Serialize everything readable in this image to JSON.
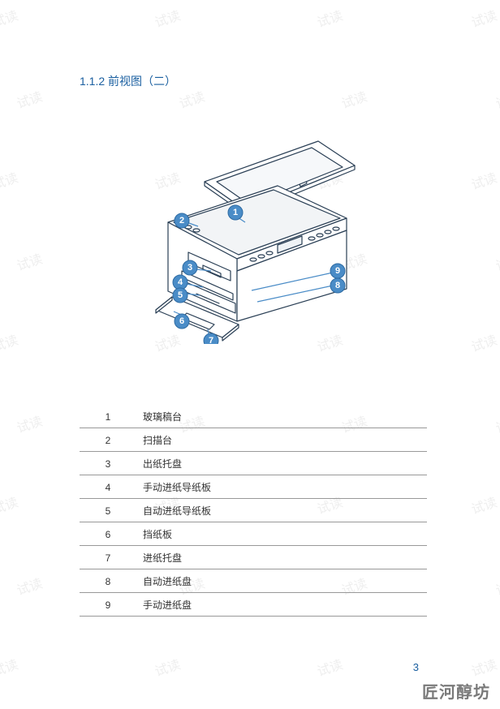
{
  "watermark_text": "试读",
  "section_title": "1.1.2  前视图（二）",
  "callouts": {
    "c1": "1",
    "c2": "2",
    "c3": "3",
    "c4": "4",
    "c5": "5",
    "c6": "6",
    "c7": "7",
    "c8": "8",
    "c9": "9"
  },
  "parts": [
    {
      "num": "1",
      "label": "玻璃稿台"
    },
    {
      "num": "2",
      "label": "扫描台"
    },
    {
      "num": "3",
      "label": "出纸托盘"
    },
    {
      "num": "4",
      "label": "手动进纸导纸板"
    },
    {
      "num": "5",
      "label": "自动进纸导纸板"
    },
    {
      "num": "6",
      "label": "挡纸板"
    },
    {
      "num": "7",
      "label": "进纸托盘"
    },
    {
      "num": "8",
      "label": "自动进纸盘"
    },
    {
      "num": "9",
      "label": "手动进纸盘"
    }
  ],
  "page_number": "3",
  "brand": "匠河醇坊",
  "colors": {
    "heading": "#1a5fa0",
    "badge_fill": "#4a8cc7",
    "badge_stroke": "#2e6ba3",
    "line": "#2a3f55",
    "table_border": "#999999",
    "watermark": "#e8e8e8",
    "brand": "#7a7a7a"
  }
}
